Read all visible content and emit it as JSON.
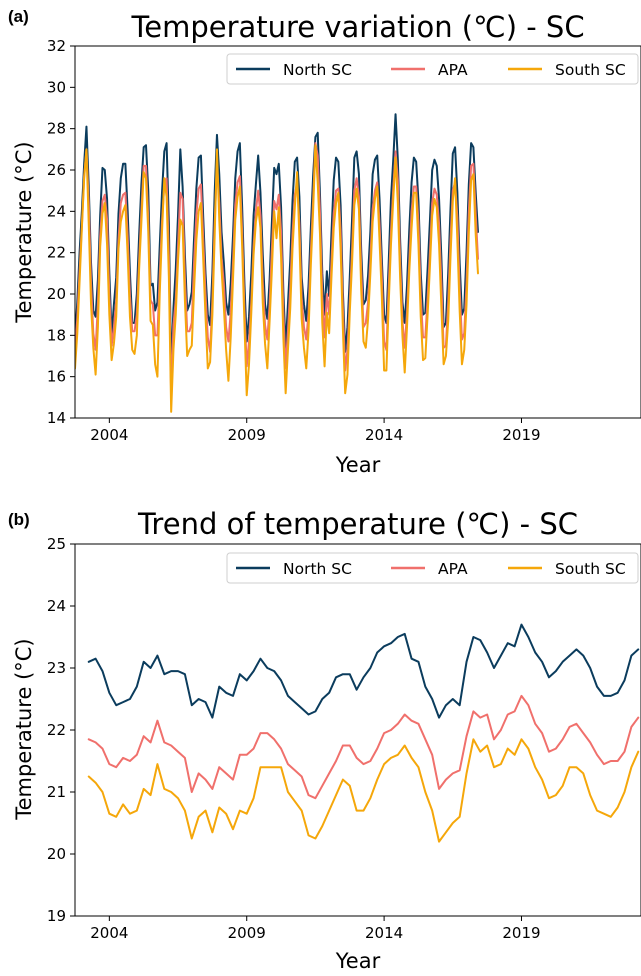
{
  "chart_data": [
    {
      "type": "line",
      "panel_label": "(a)",
      "title": "Temperature variation (℃) - SC",
      "xlabel": "Year",
      "ylabel": "Temperature (°C)",
      "xlim": [
        2002.75,
        2023.35
      ],
      "ylim": [
        14,
        32
      ],
      "x_ticks": [
        2004,
        2009,
        2014,
        2019
      ],
      "y_ticks": [
        14,
        16,
        18,
        20,
        22,
        24,
        26,
        28,
        30,
        32
      ],
      "legend_position": "top-right",
      "sampling": "monthly",
      "x_start": 2002.75,
      "series": [
        {
          "name": "North SC",
          "color": "#0b3c5d",
          "values": [
            17.8,
            19.6,
            22.0,
            24.0,
            26.3,
            28.1,
            25.2,
            21.5,
            19.2,
            18.9,
            20.7,
            23.8,
            26.1,
            26.0,
            24.6,
            21.0,
            18.0,
            19.5,
            20.8,
            23.9,
            25.6,
            26.3,
            26.3,
            24.0,
            21.0,
            18.6,
            18.6,
            20.0,
            22.8,
            25.3,
            27.1,
            27.2,
            25.0,
            20.4,
            20.5,
            19.2,
            19.6,
            22.3,
            24.9,
            26.9,
            27.3,
            23.4,
            16.2,
            19.3,
            21.2,
            23.8,
            27.0,
            25.2,
            21.9,
            19.2,
            19.5,
            20.1,
            22.7,
            25.1,
            26.6,
            26.7,
            23.7,
            21.0,
            19.0,
            18.5,
            21.0,
            24.9,
            27.7,
            25.8,
            23.0,
            21.5,
            19.6,
            19.0,
            20.5,
            22.8,
            25.6,
            26.9,
            27.3,
            24.2,
            20.5,
            17.7,
            18.9,
            21.0,
            23.8,
            25.3,
            26.7,
            24.9,
            21.9,
            19.5,
            18.8,
            20.7,
            23.5,
            26.1,
            25.8,
            26.3,
            24.2,
            20.1,
            17.4,
            19.5,
            21.6,
            24.5,
            26.4,
            26.6,
            24.7,
            20.8,
            19.5,
            18.7,
            20.4,
            23.2,
            25.7,
            27.6,
            27.8,
            24.8,
            21.0,
            19.0,
            21.1,
            19.9,
            22.9,
            25.5,
            26.6,
            26.4,
            24.3,
            20.1,
            17.2,
            18.4,
            20.8,
            23.6,
            26.6,
            26.9,
            25.8,
            22.1,
            19.5,
            19.7,
            20.9,
            23.0,
            25.8,
            26.5,
            26.7,
            24.6,
            21.7,
            19.0,
            18.6,
            21.5,
            24.6,
            26.5,
            28.7,
            26.5,
            22.6,
            19.6,
            18.6,
            20.4,
            23.1,
            25.4,
            26.6,
            26.4,
            24.5,
            21.0,
            19.0,
            19.1,
            21.2,
            23.5,
            26.0,
            26.5,
            26.2,
            24.6,
            21.8,
            18.4,
            18.6,
            21.0,
            24.1,
            26.8,
            27.1,
            24.9,
            21.5,
            19.0,
            19.3,
            22.0,
            25.3,
            27.3,
            27.1,
            24.9,
            23.0
          ]
        },
        {
          "name": "APA",
          "color": "#f0706c",
          "values": [
            17.3,
            18.8,
            21.1,
            23.3,
            25.7,
            27.0,
            24.4,
            20.5,
            18.1,
            17.3,
            19.5,
            22.8,
            24.5,
            24.8,
            23.6,
            19.9,
            17.5,
            18.4,
            19.7,
            22.6,
            24.4,
            24.8,
            24.9,
            22.8,
            19.9,
            18.2,
            18.2,
            19.0,
            21.6,
            24.0,
            26.2,
            26.2,
            23.6,
            19.7,
            19.5,
            18.0,
            18.0,
            20.9,
            23.5,
            25.3,
            25.6,
            21.8,
            15.0,
            18.5,
            19.7,
            22.3,
            24.9,
            24.6,
            20.8,
            18.2,
            18.2,
            18.6,
            21.5,
            23.8,
            25.1,
            25.3,
            22.7,
            20.0,
            17.9,
            17.2,
            19.7,
            23.4,
            26.3,
            24.4,
            21.8,
            20.5,
            18.4,
            17.7,
            19.1,
            21.5,
            24.3,
            25.4,
            25.7,
            23.0,
            19.3,
            16.5,
            17.7,
            19.6,
            22.3,
            24.0,
            25.0,
            23.8,
            20.6,
            18.5,
            17.8,
            19.5,
            22.2,
            24.5,
            24.1,
            24.8,
            23.0,
            19.1,
            16.4,
            18.2,
            20.3,
            22.9,
            24.8,
            25.4,
            23.4,
            19.8,
            18.4,
            17.8,
            19.1,
            22.0,
            24.5,
            27.3,
            26.7,
            23.9,
            19.9,
            17.9,
            20.0,
            19.0,
            21.5,
            23.9,
            25.0,
            25.1,
            23.1,
            19.3,
            16.3,
            17.3,
            19.6,
            22.1,
            25.0,
            25.6,
            24.7,
            21.2,
            18.4,
            18.6,
            19.6,
            21.7,
            24.1,
            25.0,
            25.4,
            23.4,
            20.8,
            17.7,
            17.3,
            20.3,
            23.0,
            25.1,
            26.9,
            25.5,
            21.6,
            18.7,
            17.4,
            19.1,
            21.6,
            24.0,
            25.2,
            25.2,
            23.5,
            19.9,
            17.9,
            17.9,
            19.8,
            22.0,
            24.4,
            25.1,
            24.8,
            23.4,
            20.6,
            17.4,
            17.5,
            19.6,
            22.6,
            25.0,
            25.4,
            23.7,
            20.2,
            17.8,
            18.1,
            20.5,
            24.0,
            26.2,
            26.3,
            23.9,
            21.7
          ]
        },
        {
          "name": "South SC",
          "color": "#f5a70a",
          "values": [
            16.4,
            18.1,
            20.6,
            23.2,
            25.6,
            27.0,
            23.4,
            19.5,
            17.4,
            16.1,
            18.4,
            22.3,
            23.9,
            24.4,
            22.4,
            19.0,
            16.8,
            17.6,
            18.9,
            22.2,
            23.5,
            24.0,
            24.3,
            21.9,
            18.9,
            17.3,
            17.1,
            18.0,
            21.2,
            23.5,
            25.9,
            25.6,
            23.0,
            18.7,
            18.5,
            16.6,
            16.0,
            20.0,
            23.0,
            25.6,
            24.7,
            20.8,
            14.3,
            17.3,
            19.0,
            21.6,
            23.6,
            23.3,
            19.7,
            17.0,
            17.3,
            17.5,
            20.2,
            22.6,
            24.0,
            24.4,
            21.7,
            18.9,
            16.4,
            16.7,
            19.0,
            22.8,
            27.0,
            23.6,
            21.2,
            19.4,
            17.3,
            15.8,
            17.9,
            20.7,
            23.6,
            24.7,
            25.2,
            22.3,
            18.6,
            15.1,
            16.6,
            19.1,
            21.9,
            23.5,
            24.2,
            23.2,
            19.6,
            17.6,
            16.4,
            18.7,
            21.2,
            24.0,
            22.7,
            24.2,
            21.8,
            17.9,
            15.2,
            17.3,
            19.3,
            22.2,
            24.2,
            25.9,
            22.7,
            18.8,
            17.4,
            16.4,
            18.2,
            21.4,
            24.0,
            27.2,
            25.4,
            22.9,
            18.6,
            16.5,
            19.1,
            18.1,
            20.8,
            23.2,
            24.4,
            24.9,
            22.2,
            18.3,
            15.2,
            16.1,
            19.1,
            21.5,
            24.3,
            25.1,
            24.1,
            20.2,
            17.7,
            17.4,
            18.8,
            21.0,
            23.5,
            24.6,
            25.2,
            22.6,
            19.9,
            16.3,
            16.3,
            19.5,
            22.4,
            24.6,
            26.6,
            24.4,
            20.8,
            18.0,
            16.2,
            18.4,
            21.1,
            23.2,
            24.9,
            24.9,
            22.4,
            18.9,
            16.8,
            16.9,
            19.0,
            21.3,
            23.8,
            24.6,
            24.2,
            22.4,
            19.4,
            16.6,
            17.0,
            18.7,
            21.8,
            24.5,
            25.6,
            22.6,
            19.2,
            16.6,
            17.3,
            19.5,
            23.0,
            25.5,
            25.8,
            22.9,
            21.0
          ]
        }
      ]
    },
    {
      "type": "line",
      "panel_label": "(b)",
      "title": "Trend of temperature (℃) - SC",
      "xlabel": "Year",
      "ylabel": "Temperature (°C)",
      "xlim": [
        2002.75,
        2023.35
      ],
      "ylim": [
        19,
        25
      ],
      "x_ticks": [
        2004,
        2009,
        2014,
        2019
      ],
      "y_ticks": [
        19,
        20,
        21,
        22,
        23,
        24,
        25
      ],
      "legend_position": "top-right",
      "x": [
        2003.25,
        2003.5,
        2003.75,
        2004.0,
        2004.25,
        2004.5,
        2004.75,
        2005.0,
        2005.25,
        2005.5,
        2005.75,
        2006.0,
        2006.25,
        2006.5,
        2006.75,
        2007.0,
        2007.25,
        2007.5,
        2007.75,
        2008.0,
        2008.25,
        2008.5,
        2008.75,
        2009.0,
        2009.25,
        2009.5,
        2009.75,
        2010.0,
        2010.25,
        2010.5,
        2010.75,
        2011.0,
        2011.25,
        2011.5,
        2011.75,
        2012.0,
        2012.25,
        2012.5,
        2012.75,
        2013.0,
        2013.25,
        2013.5,
        2013.75,
        2014.0,
        2014.25,
        2014.5,
        2014.75,
        2015.0,
        2015.25,
        2015.5,
        2015.75,
        2016.0,
        2016.25,
        2016.5,
        2016.75,
        2017.0,
        2017.25,
        2017.5,
        2017.75,
        2018.0,
        2018.25,
        2018.5,
        2018.75,
        2019.0,
        2019.25,
        2019.5,
        2019.75,
        2020.0,
        2020.25,
        2020.5,
        2020.75,
        2021.0,
        2021.25,
        2021.5,
        2021.75,
        2022.0,
        2022.25,
        2022.5,
        2022.75,
        2023.0,
        2023.25
      ],
      "series": [
        {
          "name": "North SC",
          "color": "#0b3c5d",
          "values": [
            23.1,
            23.15,
            22.95,
            22.6,
            22.4,
            22.45,
            22.5,
            22.7,
            23.1,
            23.0,
            23.2,
            22.9,
            22.95,
            22.95,
            22.9,
            22.4,
            22.5,
            22.45,
            22.2,
            22.7,
            22.6,
            22.55,
            22.9,
            22.8,
            22.95,
            23.15,
            23.0,
            22.95,
            22.8,
            22.55,
            22.45,
            22.35,
            22.25,
            22.3,
            22.5,
            22.6,
            22.85,
            22.9,
            22.9,
            22.65,
            22.85,
            23.0,
            23.25,
            23.35,
            23.4,
            23.5,
            23.55,
            23.15,
            23.1,
            22.7,
            22.5,
            22.2,
            22.4,
            22.5,
            22.4,
            23.1,
            23.5,
            23.45,
            23.25,
            23.0,
            23.2,
            23.4,
            23.35,
            23.7,
            23.5,
            23.25,
            23.1,
            22.85,
            22.95,
            23.1,
            23.2,
            23.3,
            23.2,
            23.0,
            22.7,
            22.55,
            22.55,
            22.6,
            22.8,
            23.2,
            23.3
          ]
        },
        {
          "name": "APA",
          "color": "#f0706c",
          "values": [
            21.85,
            21.8,
            21.7,
            21.45,
            21.4,
            21.55,
            21.5,
            21.6,
            21.9,
            21.8,
            22.15,
            21.8,
            21.75,
            21.65,
            21.55,
            21.0,
            21.3,
            21.2,
            21.05,
            21.4,
            21.3,
            21.2,
            21.6,
            21.6,
            21.7,
            21.95,
            21.95,
            21.85,
            21.7,
            21.45,
            21.35,
            21.25,
            20.95,
            20.9,
            21.1,
            21.3,
            21.5,
            21.75,
            21.75,
            21.55,
            21.45,
            21.5,
            21.7,
            21.95,
            22.0,
            22.1,
            22.25,
            22.15,
            22.1,
            21.85,
            21.6,
            21.05,
            21.2,
            21.3,
            21.35,
            21.9,
            22.3,
            22.2,
            22.25,
            21.85,
            22.0,
            22.25,
            22.3,
            22.55,
            22.4,
            22.1,
            21.95,
            21.65,
            21.7,
            21.85,
            22.05,
            22.1,
            21.95,
            21.8,
            21.6,
            21.45,
            21.5,
            21.5,
            21.65,
            22.05,
            22.2
          ]
        },
        {
          "name": "South SC",
          "color": "#f5a70a",
          "values": [
            21.25,
            21.15,
            21.0,
            20.65,
            20.6,
            20.8,
            20.65,
            20.7,
            21.05,
            20.95,
            21.45,
            21.05,
            21.0,
            20.9,
            20.7,
            20.25,
            20.6,
            20.7,
            20.35,
            20.75,
            20.65,
            20.4,
            20.7,
            20.65,
            20.9,
            21.4,
            21.4,
            21.4,
            21.4,
            21.0,
            20.85,
            20.7,
            20.3,
            20.25,
            20.45,
            20.7,
            20.95,
            21.2,
            21.1,
            20.7,
            20.7,
            20.9,
            21.2,
            21.45,
            21.55,
            21.6,
            21.75,
            21.55,
            21.4,
            21.0,
            20.7,
            20.2,
            20.35,
            20.5,
            20.6,
            21.3,
            21.85,
            21.65,
            21.75,
            21.4,
            21.45,
            21.7,
            21.6,
            21.85,
            21.7,
            21.4,
            21.2,
            20.9,
            20.95,
            21.1,
            21.4,
            21.4,
            21.3,
            20.95,
            20.7,
            20.65,
            20.6,
            20.75,
            21.0,
            21.4,
            21.65
          ]
        }
      ]
    }
  ]
}
